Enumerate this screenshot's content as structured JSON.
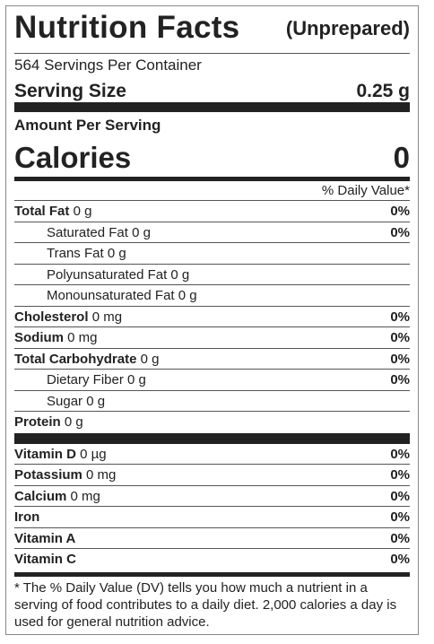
{
  "label": {
    "title": "Nutrition Facts",
    "subtitle": "(Unprepared)",
    "servings_per_container": "564 Servings Per Container",
    "serving_size_label": "Serving Size",
    "serving_size_value": "0.25 g",
    "amount_per_serving": "Amount Per Serving",
    "calories_label": "Calories",
    "calories_value": "0",
    "dv_header": "% Daily Value*",
    "nutrients": [
      {
        "name": "Total Fat",
        "amount": "0 g",
        "dv": "0%"
      },
      {
        "name": "Saturated Fat",
        "amount": "0 g",
        "dv": "0%"
      },
      {
        "name": "Trans Fat",
        "amount": "0 g",
        "dv": ""
      },
      {
        "name": "Polyunsaturated Fat",
        "amount": "0 g",
        "dv": ""
      },
      {
        "name": "Monounsaturated Fat",
        "amount": "0 g",
        "dv": ""
      },
      {
        "name": "Cholesterol",
        "amount": "0 mg",
        "dv": "0%"
      },
      {
        "name": "Sodium",
        "amount": "0 mg",
        "dv": "0%"
      },
      {
        "name": "Total Carbohydrate",
        "amount": "0 g",
        "dv": "0%"
      },
      {
        "name": "Dietary Fiber",
        "amount": "0 g",
        "dv": "0%"
      },
      {
        "name": "Sugar",
        "amount": "0 g",
        "dv": ""
      },
      {
        "name": "Protein",
        "amount": "0 g",
        "dv": ""
      }
    ],
    "vitamins": [
      {
        "name": "Vitamin D",
        "amount": "0 µg",
        "dv": "0%"
      },
      {
        "name": "Potassium",
        "amount": "0 mg",
        "dv": "0%"
      },
      {
        "name": "Calcium",
        "amount": "0 mg",
        "dv": "0%"
      },
      {
        "name": "Iron",
        "amount": "",
        "dv": "0%"
      },
      {
        "name": "Vitamin A",
        "amount": "",
        "dv": "0%"
      },
      {
        "name": "Vitamin C",
        "amount": "",
        "dv": "0%"
      }
    ],
    "footnote": "* The % Daily Value (DV) tells you how much a nutrient in a serving of food contributes to a daily diet. 2,000 calories a day is used for general nutrition advice."
  }
}
